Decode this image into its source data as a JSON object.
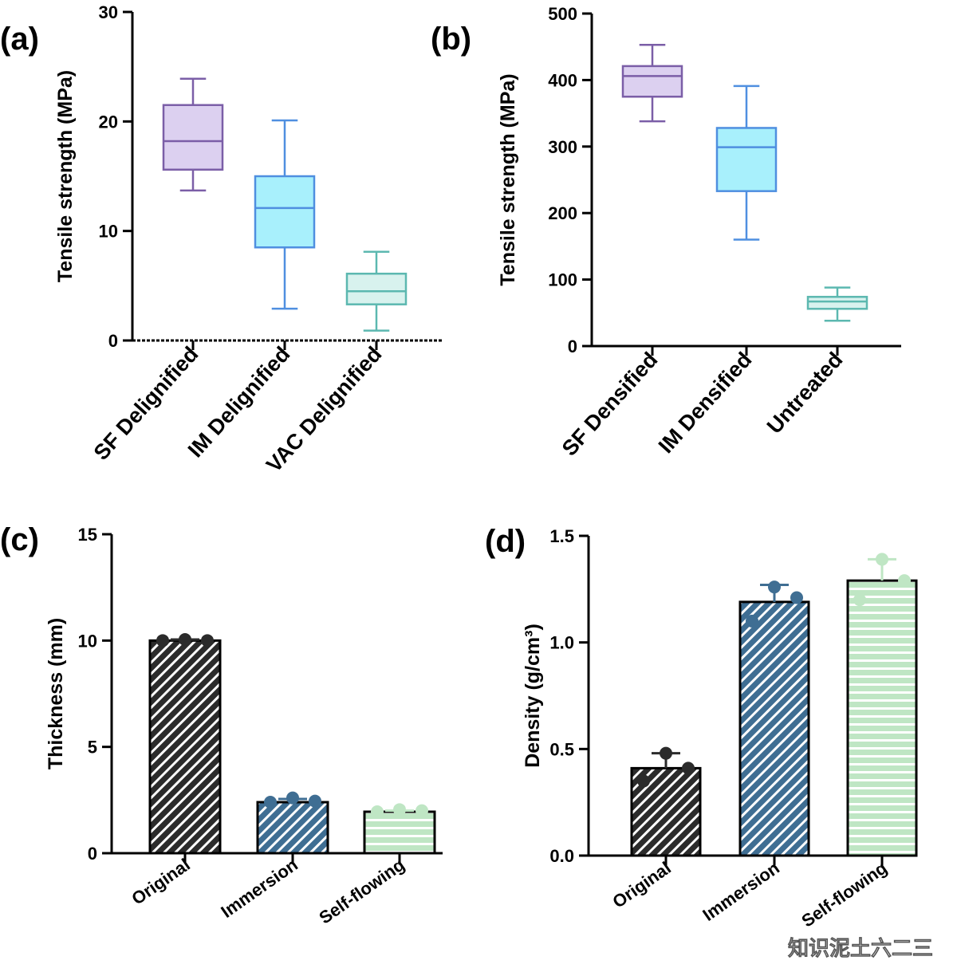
{
  "watermark": "知识泥土六二三",
  "colors": {
    "sf": "#7b5ea7",
    "sf_fill": "#dcd0f0",
    "im": "#4f8fe0",
    "im_fill": "#a8f0fc",
    "vac": "#5cb8b0",
    "vac_fill": "#d8f2ee",
    "bar_black": "#2b2b2b",
    "bar_blue": "#3f6e93",
    "bar_green": "#bfe6c4"
  },
  "chart_data": [
    {
      "panel_label": "(a)",
      "type": "box",
      "ylabel": "Tensile strength (MPa)",
      "ylim": [
        0,
        30
      ],
      "yticks": [
        "0",
        "10",
        "20",
        "30"
      ],
      "categories": [
        "SF Delignified",
        "IM Delignified",
        "VAC Delignified"
      ],
      "boxes": [
        {
          "min": 13.7,
          "q1": 15.6,
          "median": 18.2,
          "q3": 21.5,
          "max": 23.9,
          "color": "sf"
        },
        {
          "min": 2.9,
          "q1": 8.5,
          "median": 12.1,
          "q3": 15.0,
          "max": 20.1,
          "color": "im"
        },
        {
          "min": 0.9,
          "q1": 3.3,
          "median": 4.5,
          "q3": 6.1,
          "max": 8.1,
          "color": "vac"
        }
      ],
      "grid": false
    },
    {
      "panel_label": "(b)",
      "type": "box",
      "ylabel": "Tensile strength (MPa)",
      "ylim": [
        0,
        500
      ],
      "yticks": [
        "0",
        "100",
        "200",
        "300",
        "400",
        "500"
      ],
      "categories": [
        "SF Densified",
        "IM Densified",
        "Untreated"
      ],
      "boxes": [
        {
          "min": 338,
          "q1": 375,
          "median": 406,
          "q3": 421,
          "max": 453,
          "color": "sf"
        },
        {
          "min": 160,
          "q1": 233,
          "median": 299,
          "q3": 328,
          "max": 391,
          "color": "im"
        },
        {
          "min": 38,
          "q1": 56,
          "median": 67,
          "q3": 74,
          "max": 88,
          "color": "vac"
        }
      ],
      "grid": false
    },
    {
      "panel_label": "(c)",
      "type": "bar",
      "ylabel": "Thickness (mm)",
      "ylim": [
        0,
        15
      ],
      "yticks": [
        "0",
        "5",
        "10",
        "15"
      ],
      "categories": [
        "Original",
        "Immersion",
        "Self-flowing"
      ],
      "values": [
        10.0,
        2.4,
        1.95
      ],
      "errors": [
        0.05,
        0.15,
        0.05
      ],
      "points": [
        [
          10.0,
          10.05,
          10.0
        ],
        [
          2.4,
          2.6,
          2.45
        ],
        [
          1.95,
          2.05,
          2.0
        ]
      ],
      "patterns": [
        "diag-black",
        "diag-blue",
        "horiz-green"
      ],
      "grid": false
    },
    {
      "panel_label": "(d)",
      "type": "bar",
      "ylabel": "Density (g/cm³)",
      "ylim": [
        0,
        1.5
      ],
      "yticks": [
        "0.0",
        "0.5",
        "1.0",
        "1.5"
      ],
      "categories": [
        "Original",
        "Immersion",
        "Self-flowing"
      ],
      "values": [
        0.41,
        1.19,
        1.29
      ],
      "errors": [
        0.07,
        0.08,
        0.1
      ],
      "points": [
        [
          0.35,
          0.48,
          0.41
        ],
        [
          1.1,
          1.26,
          1.21
        ],
        [
          1.2,
          1.39,
          1.29
        ]
      ],
      "patterns": [
        "diag-black",
        "diag-blue",
        "horiz-green"
      ],
      "grid": false
    }
  ]
}
